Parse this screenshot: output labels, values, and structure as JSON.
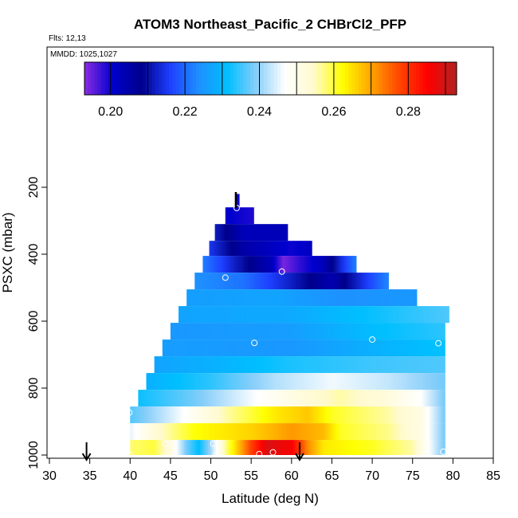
{
  "chart_data": {
    "type": "heatmap",
    "title": "ATOM3 Northeast_Pacific_2 CHBrCl2_PFP",
    "annotations": [
      "Flts: 12,13",
      "MMDD: 1025,1027"
    ],
    "xlabel": "Latitude (deg N)",
    "ylabel": "PSXC (mbar)",
    "xlim": [
      30,
      85
    ],
    "ylim": [
      1000,
      0
    ],
    "xticks": [
      "30",
      "35",
      "40",
      "45",
      "50",
      "55",
      "60",
      "65",
      "70",
      "75",
      "80",
      "85"
    ],
    "yticks": [
      "200",
      "400",
      "600",
      "800",
      "1000"
    ],
    "colorbar": {
      "min": 0.193,
      "max": 0.293,
      "ticks": [
        "0.20",
        "0.22",
        "0.24",
        "0.26",
        "0.28"
      ],
      "tick_values": [
        0.2,
        0.22,
        0.24,
        0.26,
        0.28
      ],
      "colors": [
        "#8a2be2",
        "#0000cd",
        "#00008b",
        "#1e40ff",
        "#1e90ff",
        "#00bfff",
        "#87cefa",
        "#ffffff",
        "#fffacd",
        "#ffff00",
        "#ffa500",
        "#ff4500",
        "#ff0000",
        "#b22222"
      ]
    },
    "layers": [
      {
        "p": 220,
        "p2": 260,
        "x0": 53,
        "x1": 53.5,
        "c": [
          [
            53,
            0.2
          ]
        ]
      },
      {
        "p": 260,
        "p2": 310,
        "x0": 51.8,
        "x1": 55.3,
        "c": [
          [
            51.8,
            0.201
          ],
          [
            55.3,
            0.199
          ]
        ]
      },
      {
        "p": 310,
        "p2": 360,
        "x0": 50.5,
        "x1": 59.5,
        "c": [
          [
            50.5,
            0.212
          ],
          [
            54,
            0.203
          ],
          [
            59.5,
            0.203
          ]
        ]
      },
      {
        "p": 360,
        "p2": 405,
        "x0": 49.8,
        "x1": 62.5,
        "c": [
          [
            49.8,
            0.215
          ],
          [
            54,
            0.205
          ],
          [
            60,
            0.2
          ],
          [
            62.5,
            0.202
          ]
        ]
      },
      {
        "p": 405,
        "p2": 455,
        "x0": 49,
        "x1": 68,
        "c": [
          [
            49,
            0.222
          ],
          [
            53,
            0.212
          ],
          [
            57.5,
            0.203
          ],
          [
            59,
            0.194
          ],
          [
            61,
            0.198
          ],
          [
            64,
            0.203
          ],
          [
            66,
            0.213
          ],
          [
            68,
            0.222
          ]
        ]
      },
      {
        "p": 455,
        "p2": 505,
        "x0": 48,
        "x1": 72,
        "c": [
          [
            48,
            0.224
          ],
          [
            54,
            0.221
          ],
          [
            60,
            0.212
          ],
          [
            65,
            0.204
          ],
          [
            68,
            0.212
          ],
          [
            72,
            0.223
          ]
        ]
      },
      {
        "p": 505,
        "p2": 555,
        "x0": 47,
        "x1": 75.5,
        "c": [
          [
            47,
            0.226
          ],
          [
            58,
            0.227
          ],
          [
            66,
            0.224
          ],
          [
            75.5,
            0.225
          ]
        ]
      },
      {
        "p": 555,
        "p2": 605,
        "x0": 46,
        "x1": 79.5,
        "c": [
          [
            46,
            0.227
          ],
          [
            60,
            0.228
          ],
          [
            70,
            0.232
          ],
          [
            79.5,
            0.236
          ]
        ]
      },
      {
        "p": 605,
        "p2": 655,
        "x0": 45,
        "x1": 79,
        "c": [
          [
            45,
            0.225
          ],
          [
            60,
            0.226
          ],
          [
            70,
            0.231
          ],
          [
            79,
            0.234
          ]
        ]
      },
      {
        "p": 655,
        "p2": 705,
        "x0": 44,
        "x1": 79,
        "c": [
          [
            44,
            0.226
          ],
          [
            60,
            0.225
          ],
          [
            70,
            0.229
          ],
          [
            79,
            0.232
          ]
        ]
      },
      {
        "p": 705,
        "p2": 755,
        "x0": 43,
        "x1": 79,
        "c": [
          [
            43,
            0.227
          ],
          [
            50,
            0.229
          ],
          [
            60,
            0.233
          ],
          [
            70,
            0.235
          ],
          [
            79,
            0.236
          ]
        ]
      },
      {
        "p": 755,
        "p2": 805,
        "x0": 42,
        "x1": 79,
        "c": [
          [
            42,
            0.229
          ],
          [
            50,
            0.234
          ],
          [
            58,
            0.242
          ],
          [
            65,
            0.246
          ],
          [
            72,
            0.243
          ],
          [
            79,
            0.238
          ]
        ]
      },
      {
        "p": 805,
        "p2": 855,
        "x0": 41,
        "x1": 79,
        "c": [
          [
            41,
            0.232
          ],
          [
            48,
            0.238
          ],
          [
            55,
            0.246
          ],
          [
            62,
            0.253
          ],
          [
            66,
            0.256
          ],
          [
            72,
            0.252
          ],
          [
            76,
            0.247
          ],
          [
            79,
            0.238
          ]
        ]
      },
      {
        "p": 855,
        "p2": 905,
        "x0": 40,
        "x1": 79,
        "c": [
          [
            40,
            0.236
          ],
          [
            45,
            0.244
          ],
          [
            52,
            0.256
          ],
          [
            58,
            0.264
          ],
          [
            62,
            0.267
          ],
          [
            65,
            0.261
          ],
          [
            72,
            0.256
          ],
          [
            76,
            0.251
          ],
          [
            79,
            0.238
          ]
        ]
      },
      {
        "p": 905,
        "p2": 955,
        "x0": 40,
        "x1": 79,
        "c": [
          [
            40,
            0.245
          ],
          [
            43,
            0.253
          ],
          [
            48,
            0.262
          ],
          [
            55,
            0.266
          ],
          [
            60,
            0.271
          ],
          [
            64,
            0.268
          ],
          [
            66,
            0.261
          ],
          [
            72,
            0.257
          ],
          [
            76,
            0.251
          ],
          [
            79,
            0.238
          ]
        ]
      },
      {
        "p": 955,
        "p2": 1000,
        "x0": 40,
        "x1": 79,
        "c": [
          [
            40,
            0.258
          ],
          [
            43,
            0.26
          ],
          [
            45,
            0.252
          ],
          [
            47,
            0.238
          ],
          [
            48.5,
            0.231
          ],
          [
            50,
            0.241
          ],
          [
            52,
            0.258
          ],
          [
            55,
            0.278
          ],
          [
            57,
            0.289
          ],
          [
            60,
            0.286
          ],
          [
            62,
            0.272
          ],
          [
            64,
            0.264
          ],
          [
            70,
            0.261
          ],
          [
            75,
            0.256
          ],
          [
            79,
            0.238
          ]
        ]
      }
    ],
    "samples": [
      {
        "x": 53.2,
        "p": 262
      },
      {
        "x": 51.8,
        "p": 470
      },
      {
        "x": 58.8,
        "p": 452
      },
      {
        "x": 55.4,
        "p": 665
      },
      {
        "x": 70.0,
        "p": 655
      },
      {
        "x": 78.2,
        "p": 666
      },
      {
        "x": 39.9,
        "p": 873
      },
      {
        "x": 44.4,
        "p": 966
      },
      {
        "x": 50.3,
        "p": 966
      },
      {
        "x": 39.9,
        "p": 998
      },
      {
        "x": 50.7,
        "p": 1000
      },
      {
        "x": 56.0,
        "p": 997
      },
      {
        "x": 57.7,
        "p": 992
      },
      {
        "x": 78.8,
        "p": 990
      }
    ],
    "arrows": [
      {
        "x": 53.1,
        "side": "top"
      },
      {
        "x": 34.6,
        "side": "bottom"
      },
      {
        "x": 61.0,
        "side": "bottom"
      }
    ]
  }
}
